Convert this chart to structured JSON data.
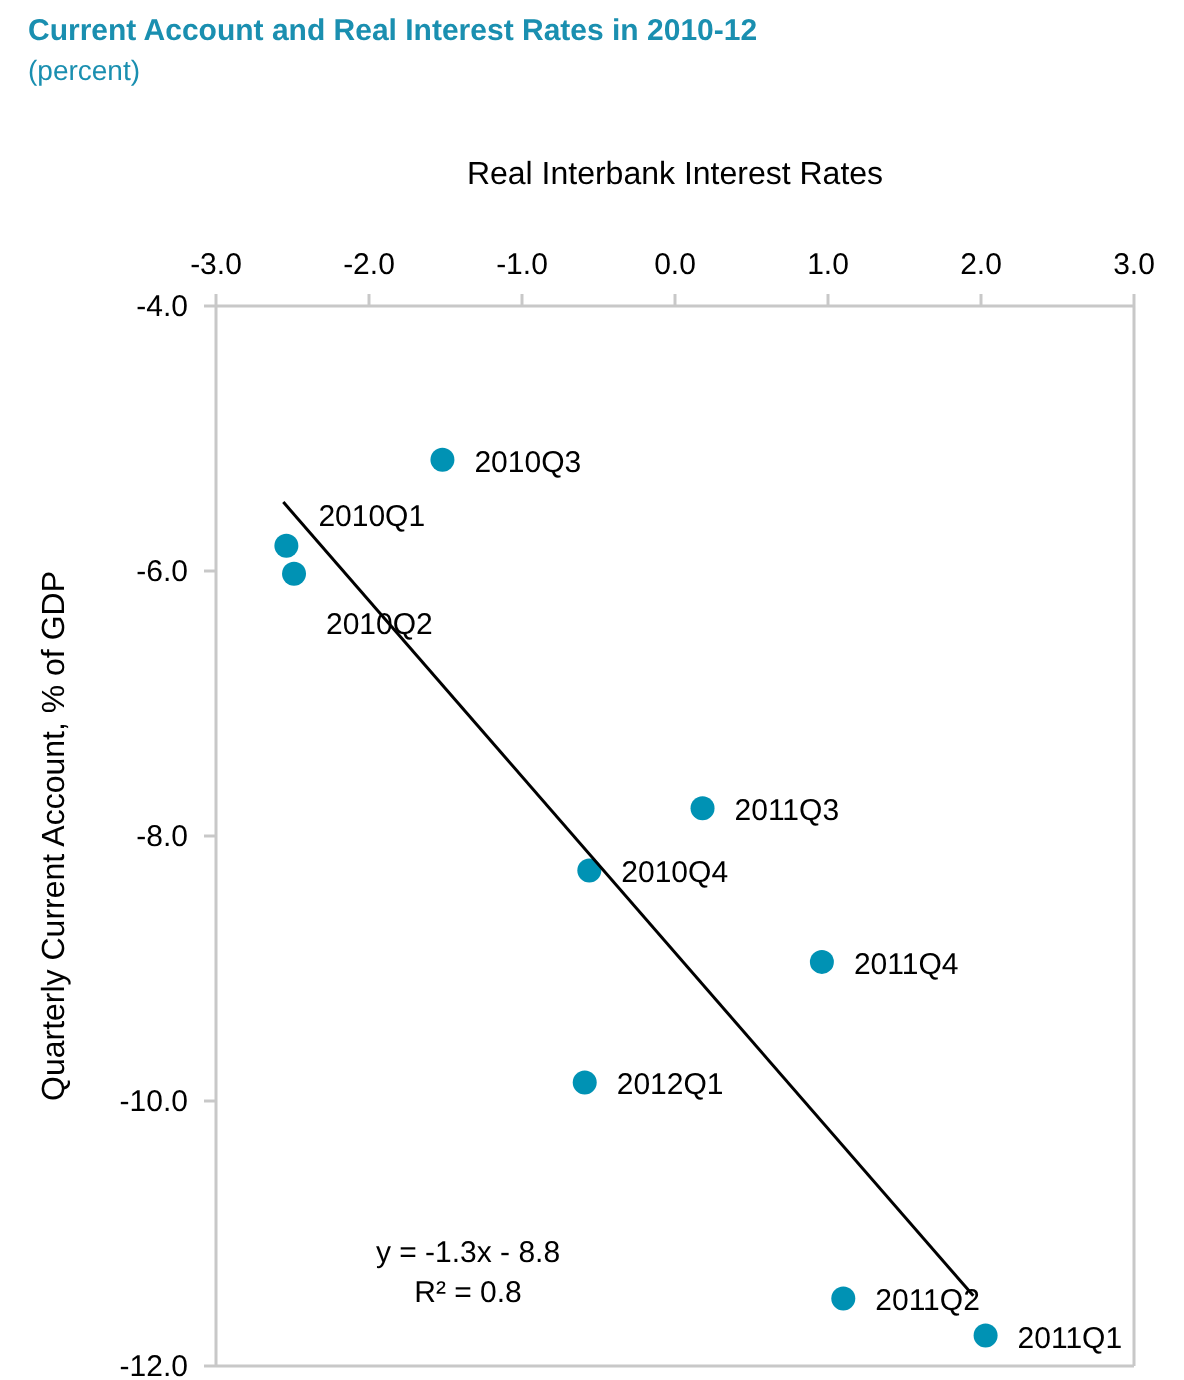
{
  "chart_data": {
    "type": "scatter",
    "title": "Current Account and Real Interest Rates in 2010-12",
    "subtitle": "(percent)",
    "xlabel": "Real Interbank Interest Rates",
    "ylabel": "Quarterly Current Account, % of GDP",
    "xlim": [
      -3,
      3
    ],
    "xticks": [
      {
        "value": -3,
        "label": "-3.0"
      },
      {
        "value": -2,
        "label": "-2.0"
      },
      {
        "value": -1,
        "label": "-1.0"
      },
      {
        "value": 0,
        "label": "0.0"
      },
      {
        "value": 1,
        "label": "1.0"
      },
      {
        "value": 2,
        "label": "2.0"
      },
      {
        "value": 3,
        "label": "3.0"
      }
    ],
    "ylim": [
      -12,
      -4
    ],
    "yticks": [
      {
        "value": -4,
        "label": "-4.0"
      },
      {
        "value": -6,
        "label": "-6.0"
      },
      {
        "value": -8,
        "label": "-8.0"
      },
      {
        "value": -10,
        "label": "-10.0"
      },
      {
        "value": -12,
        "label": "-12.0"
      }
    ],
    "grid": false,
    "series": [
      {
        "marker": "circle",
        "color": "#0092b4",
        "x": [
          -2.54,
          -2.49,
          -1.52,
          -0.56,
          2.03,
          1.1,
          0.18,
          0.96,
          -0.59
        ],
        "values": [
          -5.81,
          -6.02,
          -5.16,
          -8.26,
          -11.77,
          -11.49,
          -7.79,
          -8.95,
          -9.86
        ]
      },
      {
        "type": "line",
        "color": "#000000",
        "x": [
          -2.56,
          1.95
        ],
        "values": [
          -5.48,
          -11.47
        ]
      }
    ],
    "annotations": [
      {
        "text": "2010Q1",
        "x": -2.54,
        "y": -5.81
      },
      {
        "text": "2010Q2",
        "x": -2.49,
        "y": -6.02
      },
      {
        "text": "2010Q3",
        "x": -1.52,
        "y": -5.16
      },
      {
        "text": "2010Q4",
        "x": -0.56,
        "y": -8.26
      },
      {
        "text": "2011Q1",
        "x": 2.03,
        "y": -11.77
      },
      {
        "text": "2011Q2",
        "x": 1.1,
        "y": -11.49
      },
      {
        "text": "2011Q3",
        "x": 0.18,
        "y": -7.79
      },
      {
        "text": "2011Q4",
        "x": 0.96,
        "y": -8.95
      },
      {
        "text": "2012Q1",
        "x": -0.59,
        "y": -9.86
      },
      "y = -1.3x - 8.8",
      "R² = 0.8"
    ]
  }
}
